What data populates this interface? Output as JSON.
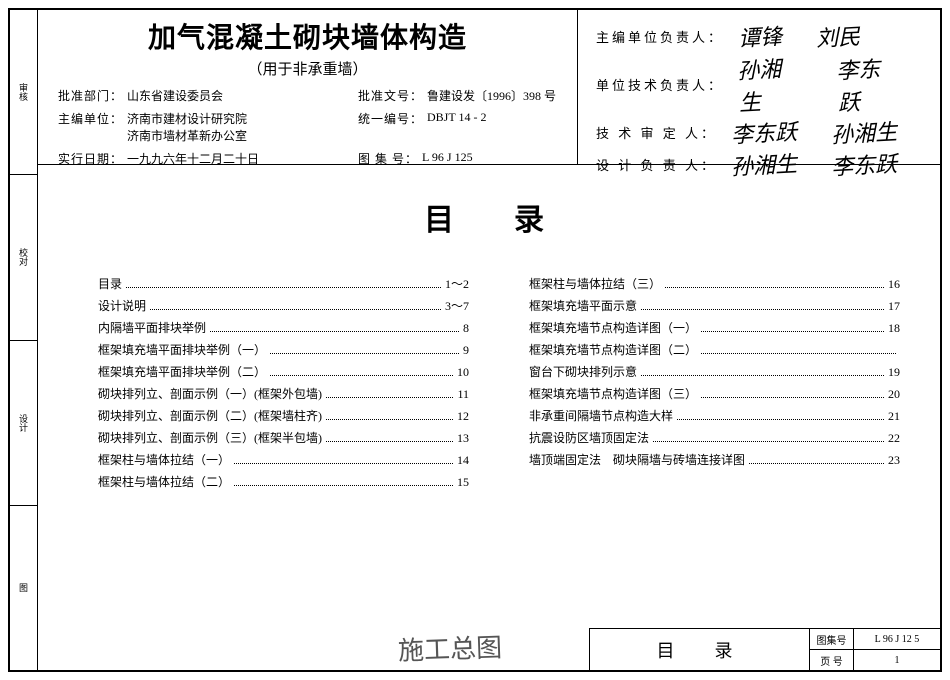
{
  "stub": [
    "审核",
    "校对",
    "设计",
    "图"
  ],
  "title": {
    "main": "加气混凝土砌块墙体构造",
    "sub": "（用于非承重墙）"
  },
  "info": {
    "approval_dept_label": "批准部门：",
    "approval_dept_value": "山东省建设委员会",
    "approval_doc_label": "批准文号：",
    "approval_doc_value": "鲁建设发〔1996〕398 号",
    "editor_label": "主编单位：",
    "editor_value1": "济南市建材设计研究院",
    "editor_value2": "济南市墙材革新办公室",
    "code_label": "统一编号：",
    "code_value": "DBJT 14 - 2",
    "date_label": "实行日期：",
    "date_value": "一九九六年十二月二十日",
    "album_label": "图 集 号：",
    "album_value": "L 96 J 125"
  },
  "signs": {
    "r1_label": "主编单位负责人：",
    "r2_label": "单位技术负责人：",
    "r3_label": "技 术 审 定 人：",
    "r4_label": "设 计 负 责 人：",
    "sig_a": "谭锋",
    "sig_b": "刘民",
    "sig_c": "孙湘生",
    "sig_d": "李东跃"
  },
  "toc_heading": "目录",
  "toc_left": [
    {
      "t": "目录",
      "p": "1～2"
    },
    {
      "t": "设计说明",
      "p": "3～7"
    },
    {
      "t": "内隔墙平面排块举例",
      "p": "8"
    },
    {
      "t": "框架填充墙平面排块举例（一）",
      "p": "9"
    },
    {
      "t": "框架填充墙平面排块举例（二）",
      "p": "10"
    },
    {
      "t": "砌块排列立、剖面示例（一）(框架外包墙)",
      "p": "11"
    },
    {
      "t": "砌块排列立、剖面示例（二）(框架墙柱齐)",
      "p": "12"
    },
    {
      "t": "砌块排列立、剖面示例（三）(框架半包墙)",
      "p": "13"
    },
    {
      "t": "框架柱与墙体拉结（一）",
      "p": "14"
    },
    {
      "t": "框架柱与墙体拉结（二）",
      "p": "15"
    }
  ],
  "toc_right": [
    {
      "t": "框架柱与墙体拉结（三）",
      "p": "16"
    },
    {
      "t": "框架填充墙平面示意",
      "p": "17"
    },
    {
      "t": "框架填充墙节点构造详图（一）",
      "p": "18"
    },
    {
      "t": "框架填充墙节点构造详图（二）",
      "p": ""
    },
    {
      "t": "窗台下砌块排列示意",
      "p": "19"
    },
    {
      "t": "框架填充墙节点构造详图（三）",
      "p": "20"
    },
    {
      "t": "非承重间隔墙节点构造大样",
      "p": "21"
    },
    {
      "t": "抗震设防区墙顶固定法",
      "p": "22"
    },
    {
      "t": "墙顶端固定法　砌块隔墙与砖墙连接详图",
      "p": "23"
    }
  ],
  "footer": {
    "title": "目录",
    "album_label": "图集号",
    "album_value": "L 96 J 12 5",
    "page_label": "页 号",
    "page_value": "1"
  },
  "scribble": "施工总图"
}
